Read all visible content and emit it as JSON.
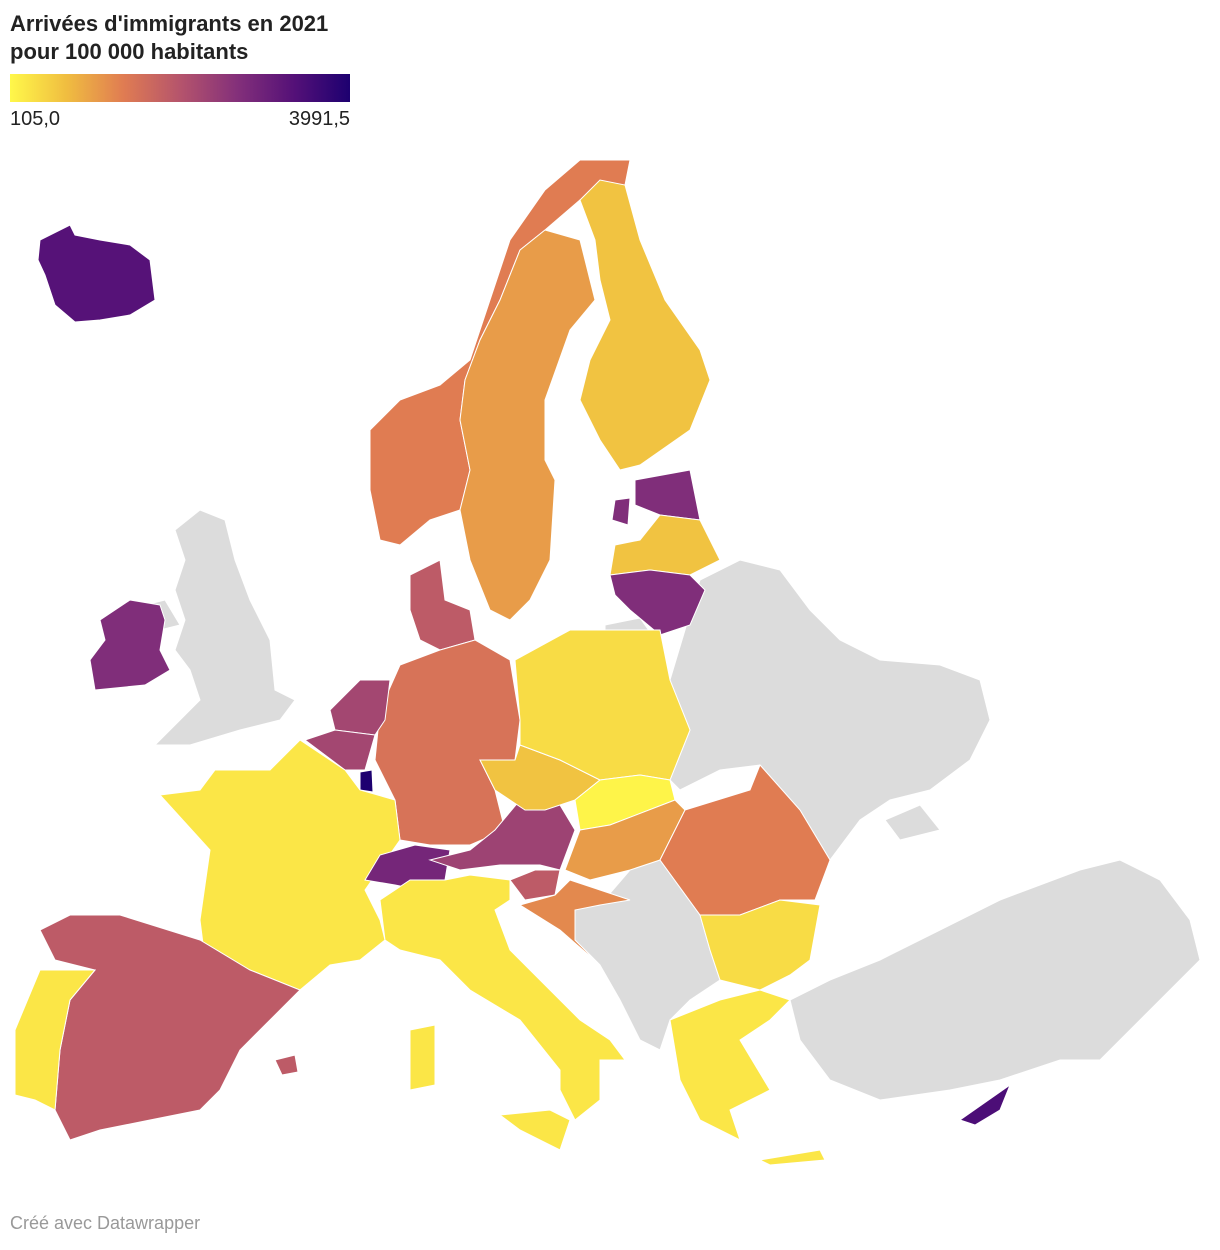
{
  "title": "Arrivées d'immigrants en 2021 pour 100 000 habitants",
  "legend": {
    "min": {
      "value": 105.0,
      "label": "105,0"
    },
    "max": {
      "value": 3991.5,
      "label": "3991,5"
    },
    "colors": [
      "#fff84a",
      "#f0bd40",
      "#e07c52",
      "#b5546c",
      "#84307a",
      "#551178",
      "#1d0070"
    ]
  },
  "map": {
    "type": "choropleth",
    "no_data_color": "#dcdcdc",
    "values": [
      3331,
      1400,
      1077,
      688,
      2748,
      688,
      2748,
      1932,
      1543,
      2282,
      2282,
      3991.5,
      299,
      1932,
      299,
      2748,
      2903,
      2359,
      299,
      688,
      416,
      144,
      1077,
      1932,
      1271,
      1400,
      416,
      299,
      3448
    ]
  },
  "footer": "Créé avec Datawrapper"
}
